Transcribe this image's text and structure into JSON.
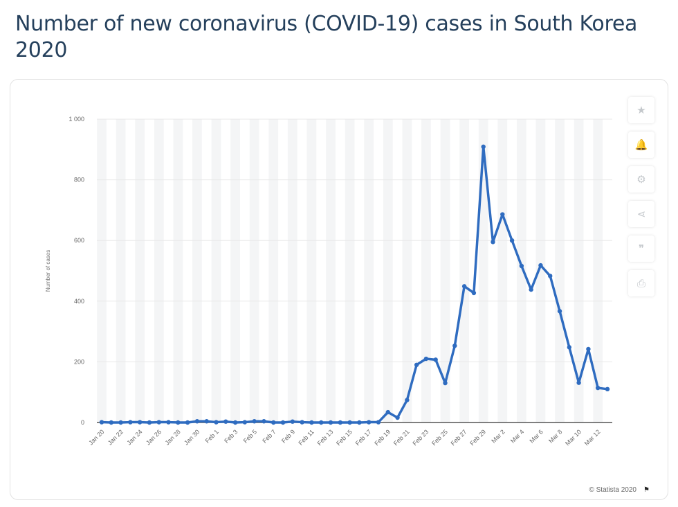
{
  "title": "Number of new coronavirus (COVID-19) cases in South Korea 2020",
  "credit": "© Statista 2020",
  "toolbar": {
    "icons": [
      "star-icon",
      "bell-icon",
      "gear-icon",
      "share-icon",
      "quote-icon",
      "print-icon"
    ],
    "glyphs": [
      "★",
      "🔔",
      "⚙",
      "⋖",
      "❞",
      "⎙"
    ]
  },
  "colors": {
    "line": "#2f6cc0",
    "band": "#f4f5f6",
    "grid": "#e8e8e8",
    "axis": "#555555"
  },
  "chart_data": {
    "type": "line",
    "title": "Number of new coronavirus (COVID-19) cases in South Korea 2020",
    "xlabel": "",
    "ylabel": "Number of cases",
    "ylim": [
      0,
      1000
    ],
    "yticks": [
      0,
      200,
      400,
      600,
      800,
      1000
    ],
    "ytick_labels": [
      "0",
      "200",
      "400",
      "600",
      "800",
      "1 000"
    ],
    "grid": true,
    "x": [
      "Jan 20",
      "Jan 21",
      "Jan 22",
      "Jan 23",
      "Jan 24",
      "Jan 25",
      "Jan 26",
      "Jan 27",
      "Jan 28",
      "Jan 29",
      "Jan 30",
      "Jan 31",
      "Feb 1",
      "Feb 2",
      "Feb 3",
      "Feb 4",
      "Feb 5",
      "Feb 6",
      "Feb 7",
      "Feb 8",
      "Feb 9",
      "Feb 10",
      "Feb 11",
      "Feb 12",
      "Feb 13",
      "Feb 14",
      "Feb 15",
      "Feb 16",
      "Feb 17",
      "Feb 18",
      "Feb 19",
      "Feb 20",
      "Feb 21",
      "Feb 22",
      "Feb 23",
      "Feb 24",
      "Feb 25",
      "Feb 26",
      "Feb 27",
      "Feb 28",
      "Feb 29",
      "Mar 1",
      "Mar 2",
      "Mar 3",
      "Mar 4",
      "Mar 5",
      "Mar 6",
      "Mar 7",
      "Mar 8",
      "Mar 9",
      "Mar 10",
      "Mar 11",
      "Mar 12",
      "Mar 13"
    ],
    "xtick_labels": [
      "Jan 20",
      "Jan 22",
      "Jan 24",
      "Jan 26",
      "Jan 28",
      "Jan 30",
      "Feb 1",
      "Feb 3",
      "Feb 5",
      "Feb 7",
      "Feb 9",
      "Feb 11",
      "Feb 13",
      "Feb 15",
      "Feb 17",
      "Feb 19",
      "Feb 21",
      "Feb 23",
      "Feb 25",
      "Feb 27",
      "Feb 29",
      "Mar 2",
      "Mar 4",
      "Mar 6",
      "Mar 8",
      "Mar 10",
      "Mar 12"
    ],
    "values": [
      1,
      0,
      0,
      1,
      1,
      0,
      1,
      1,
      0,
      0,
      4,
      4,
      1,
      3,
      0,
      1,
      4,
      4,
      0,
      0,
      3,
      1,
      0,
      0,
      0,
      0,
      0,
      0,
      1,
      1,
      34,
      16,
      74,
      190,
      210,
      207,
      130,
      253,
      449,
      427,
      909,
      595,
      686,
      600,
      516,
      438,
      518,
      483,
      367,
      248,
      131,
      242,
      114,
      110
    ]
  }
}
